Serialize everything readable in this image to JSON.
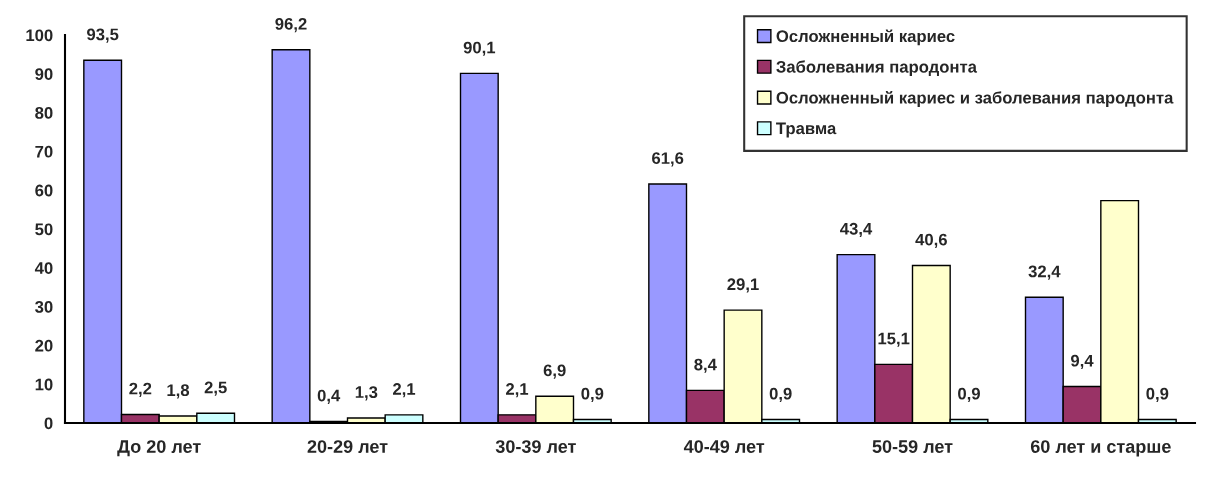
{
  "chart_data": {
    "type": "bar",
    "categories": [
      "До 20 лет",
      "20-29 лет",
      "30-39 лет",
      "40-49 лет",
      "50-59 лет",
      "60 лет и старше"
    ],
    "series": [
      {
        "name": "Осложненный кариес",
        "color": "#9999ff",
        "values": [
          93.5,
          96.2,
          90.1,
          61.6,
          43.4,
          32.4
        ],
        "value_labels": [
          "93,5",
          "96,2",
          "90,1",
          "61,6",
          "43,4",
          "32,4"
        ]
      },
      {
        "name": "Заболевания пародонта",
        "color": "#993366",
        "values": [
          2.2,
          0.4,
          2.1,
          8.4,
          15.1,
          9.4
        ],
        "value_labels": [
          "2,2",
          "0,4",
          "2,1",
          "8,4",
          "15,1",
          "9,4"
        ]
      },
      {
        "name": "Осложненный кариес и заболевания пародонта",
        "color": "#ffffcc",
        "values": [
          1.8,
          1.3,
          6.9,
          29.1,
          40.6,
          57.3
        ],
        "value_labels": [
          "1,8",
          "1,3",
          "6,9",
          "29,1",
          "40,6",
          null
        ]
      },
      {
        "name": "Травма",
        "color": "#ccffff",
        "values": [
          2.5,
          2.1,
          0.9,
          0.9,
          0.9,
          0.9
        ],
        "value_labels": [
          "2,5",
          "2,1",
          "0,9",
          "0,9",
          "0,9",
          "0,9"
        ]
      }
    ],
    "ylim": [
      0,
      100
    ],
    "yticks": [
      0,
      10,
      20,
      30,
      40,
      50,
      60,
      70,
      80,
      90,
      100
    ],
    "grid": false,
    "legend": "top right"
  }
}
